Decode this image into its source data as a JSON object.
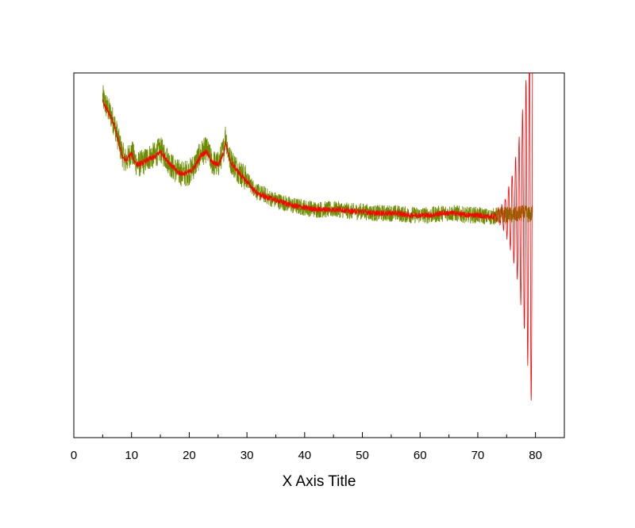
{
  "chart_data": {
    "type": "line",
    "title": "",
    "xlabel": "X Axis Title",
    "ylabel": "",
    "xlim": [
      0,
      85
    ],
    "ylim": [
      -1.2,
      0.75
    ],
    "x_ticks": [
      "0",
      "10",
      "20",
      "30",
      "40",
      "50",
      "60",
      "70",
      "80"
    ],
    "y_ticks_labeled": false,
    "grid": false,
    "legend": "none",
    "series": [
      {
        "color": "#6b8e00",
        "style": "noisy raw signal",
        "x": [
          5,
          5.5,
          6,
          6.5,
          7,
          7.5,
          8,
          8.5,
          9,
          9.5,
          10,
          10.5,
          11,
          12,
          13,
          14,
          15,
          16,
          17,
          18,
          19,
          20,
          21,
          22,
          23,
          24,
          25,
          25.5,
          26,
          26.3,
          26.6,
          27,
          28,
          29,
          30,
          31,
          32,
          33,
          34,
          35,
          36,
          38,
          40,
          42,
          44,
          46,
          48,
          50,
          52,
          54,
          56,
          58,
          60,
          62,
          64,
          66,
          68,
          70,
          72,
          74,
          76,
          78,
          79,
          79.5
        ],
        "y": [
          0.62,
          0.58,
          0.55,
          0.52,
          0.48,
          0.42,
          0.36,
          0.31,
          0.28,
          0.3,
          0.33,
          0.29,
          0.26,
          0.27,
          0.3,
          0.31,
          0.34,
          0.3,
          0.25,
          0.22,
          0.21,
          0.22,
          0.26,
          0.32,
          0.34,
          0.27,
          0.26,
          0.3,
          0.35,
          0.42,
          0.36,
          0.29,
          0.25,
          0.21,
          0.18,
          0.14,
          0.11,
          0.1,
          0.08,
          0.07,
          0.06,
          0.04,
          0.03,
          0.02,
          0.02,
          0.02,
          0.01,
          0.01,
          0.0,
          0.0,
          0.0,
          -0.01,
          -0.01,
          -0.01,
          0.0,
          0.0,
          -0.01,
          -0.01,
          -0.02,
          -0.01,
          -0.01,
          0.0,
          -0.01,
          0.0
        ],
        "noise_amplitude": 0.045
      },
      {
        "color": "#ff0000",
        "style": "smoothed signal with ringing near the end",
        "x": [
          5,
          5.5,
          6,
          6.5,
          7,
          7.5,
          8,
          8.5,
          9,
          9.5,
          10,
          10.5,
          11,
          12,
          13,
          14,
          15,
          16,
          17,
          18,
          19,
          20,
          21,
          22,
          23,
          24,
          25,
          25.5,
          26,
          26.3,
          26.6,
          27,
          28,
          29,
          30,
          31,
          32,
          33,
          34,
          35,
          36,
          38,
          40,
          42,
          44,
          46,
          48,
          50,
          52,
          54,
          56,
          58,
          60,
          62,
          64,
          66,
          68,
          70,
          72,
          74,
          76,
          78,
          79,
          79.5
        ],
        "y": [
          0.6,
          0.57,
          0.54,
          0.51,
          0.47,
          0.41,
          0.35,
          0.3,
          0.28,
          0.3,
          0.32,
          0.28,
          0.26,
          0.27,
          0.29,
          0.3,
          0.33,
          0.29,
          0.25,
          0.22,
          0.21,
          0.22,
          0.25,
          0.31,
          0.33,
          0.27,
          0.26,
          0.29,
          0.33,
          0.38,
          0.34,
          0.28,
          0.24,
          0.2,
          0.17,
          0.13,
          0.1,
          0.09,
          0.08,
          0.07,
          0.06,
          0.04,
          0.03,
          0.02,
          0.02,
          0.02,
          0.01,
          0.01,
          0.0,
          0.0,
          0.0,
          -0.01,
          -0.01,
          -0.01,
          0.0,
          0.0,
          -0.01,
          -0.01,
          -0.02,
          -0.01,
          -0.01,
          0.0,
          -0.01,
          0.0
        ],
        "ringing": {
          "start_x": 71,
          "end_x": 80,
          "period": 0.6,
          "max_amplitude": 1.3
        }
      }
    ]
  }
}
